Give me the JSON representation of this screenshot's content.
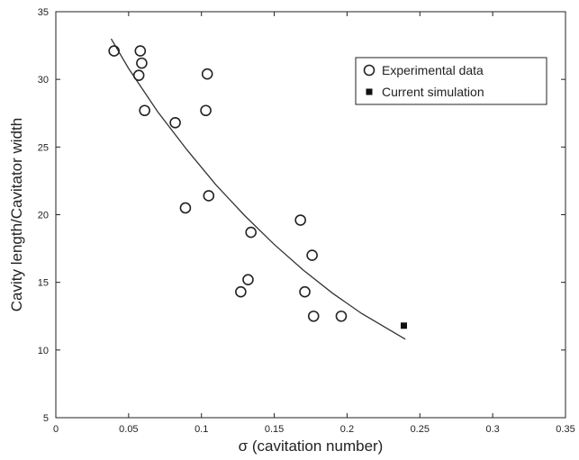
{
  "chart_data": {
    "type": "scatter",
    "xlabel": "σ (cavitation number)",
    "ylabel": "Cavity length/Cavitator width",
    "xlim": [
      0,
      0.35
    ],
    "ylim": [
      5,
      35
    ],
    "xticks": [
      0,
      0.05,
      0.1,
      0.15,
      0.2,
      0.25,
      0.3,
      0.35
    ],
    "xtick_labels": [
      "0",
      "0.05",
      "0.1",
      "0.15",
      "0.2",
      "0.25",
      "0.3",
      "0.35"
    ],
    "yticks": [
      5,
      10,
      15,
      20,
      25,
      30,
      35
    ],
    "ytick_labels": [
      "5",
      "10",
      "15",
      "20",
      "25",
      "30",
      "35"
    ],
    "grid": false,
    "legend_position": "top-right",
    "series": [
      {
        "name": "Experimental data",
        "marker": "open-circle",
        "x": [
          0.04,
          0.058,
          0.059,
          0.057,
          0.061,
          0.082,
          0.089,
          0.103,
          0.104,
          0.105,
          0.127,
          0.132,
          0.134,
          0.168,
          0.171,
          0.176,
          0.177,
          0.196
        ],
        "y": [
          32.1,
          32.1,
          31.2,
          30.3,
          27.7,
          26.8,
          20.5,
          27.7,
          30.4,
          21.4,
          14.3,
          15.2,
          18.7,
          19.6,
          14.3,
          17.0,
          12.5,
          12.5
        ]
      },
      {
        "name": "Current simulation",
        "marker": "filled-square",
        "x": [
          0.239
        ],
        "y": [
          11.8
        ]
      },
      {
        "name": "",
        "marker": "none",
        "line": "solid",
        "x": [
          0.038,
          0.05,
          0.07,
          0.09,
          0.11,
          0.13,
          0.15,
          0.17,
          0.19,
          0.21,
          0.24
        ],
        "y": [
          33.0,
          30.8,
          27.6,
          24.8,
          22.2,
          19.9,
          17.8,
          15.9,
          14.2,
          12.7,
          10.8
        ]
      }
    ]
  }
}
